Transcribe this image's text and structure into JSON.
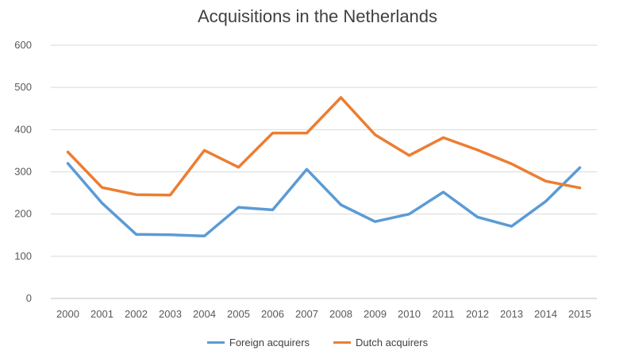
{
  "chart_data": {
    "type": "line",
    "title": "Acquisitions in the Netherlands",
    "xlabel": "",
    "ylabel": "",
    "ylim": [
      0,
      600
    ],
    "yticks": [
      0,
      100,
      200,
      300,
      400,
      500,
      600
    ],
    "categories": [
      "2000",
      "2001",
      "2002",
      "2003",
      "2004",
      "2005",
      "2006",
      "2007",
      "2008",
      "2009",
      "2010",
      "2011",
      "2012",
      "2013",
      "2014",
      "2015"
    ],
    "grid": true,
    "legend_position": "bottom",
    "series": [
      {
        "name": "Foreign acquirers",
        "color": "#5B9BD5",
        "values": [
          320,
          226,
          152,
          151,
          148,
          216,
          210,
          306,
          222,
          182,
          200,
          252,
          193,
          171,
          230,
          310
        ]
      },
      {
        "name": "Dutch acquirers",
        "color": "#ED7D31",
        "values": [
          347,
          263,
          246,
          245,
          351,
          311,
          392,
          392,
          476,
          388,
          339,
          381,
          352,
          319,
          278,
          262
        ]
      }
    ]
  }
}
